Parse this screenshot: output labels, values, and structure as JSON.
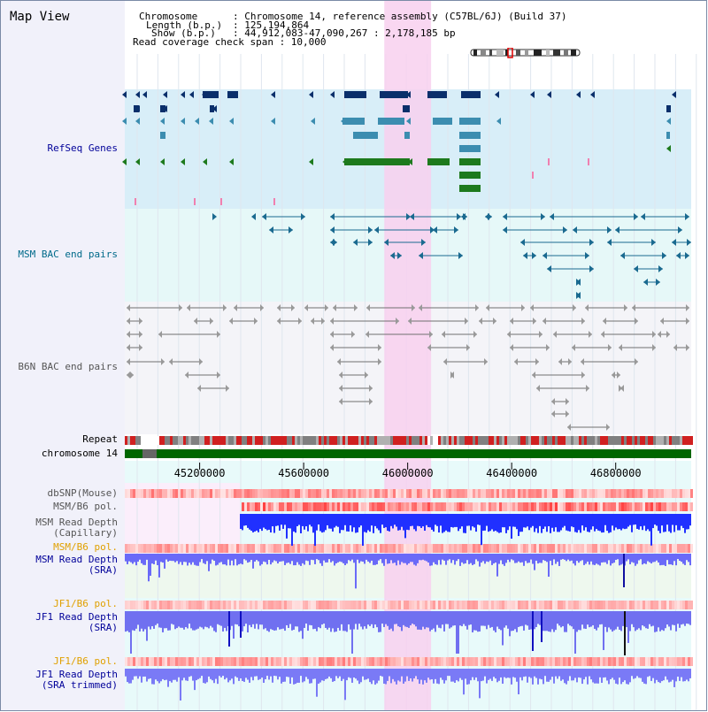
{
  "title": "Map View",
  "info": {
    "chromosome_label": "Chromosome",
    "chromosome_value": ": Chromosome 14, reference assembly (C57BL/6J) (Build 37)",
    "length_label": "Length (b.p.)",
    "length_value": ": 125,194,864",
    "show_label": "Show (b.p.)",
    "show_value": ": 44,912,083-47,090,267 : 2,178,185 bp",
    "coverage_text": "Read coverage check span : 10,000"
  },
  "tracks": {
    "refseq": "RefSeq Genes",
    "msm_bac": "MSM BAC end pairs",
    "b6n_bac": "B6N BAC end pairs",
    "repeat": "Repeat",
    "chromosome": "chromosome 14",
    "dbsnp": "dbSNP(Mouse)",
    "msm_b6_pol_1": "MSM/B6 pol.",
    "msm_depth_cap_1": "MSM Read Depth",
    "msm_depth_cap_2": "(Capillary)",
    "msm_b6_pol_2": "MSM/B6 pol.",
    "msm_depth_sra_1": "MSM Read Depth",
    "msm_depth_sra_2": "(SRA)",
    "jf1_b6_pol_1": "JF1/B6 pol.",
    "jf1_depth_sra_1": "JF1 Read Depth",
    "jf1_depth_sra_2": "(SRA)",
    "jf1_b6_pol_2": "JF1/B6 pol.",
    "jf1_depth_trim_1": "JF1 Read Depth",
    "jf1_depth_trim_2": "(SRA trimmed)"
  },
  "axis": {
    "ticks": [
      "45200000",
      "45600000",
      "46000000",
      "46400000",
      "46800000"
    ],
    "tick_values": [
      45200000,
      45600000,
      46000000,
      46400000,
      46800000
    ],
    "start": 44912083,
    "end": 47090267
  },
  "highlight": {
    "start": 45910000,
    "end": 46090000
  },
  "colors": {
    "refseq_bg": "#d8eef8",
    "msm_bg": "#e6f8f8",
    "b6n_bg": "#f4f4f8",
    "highlight": "#f8d0ee",
    "gene_dark": "#0a2f6b",
    "gene_mid": "#3c8db0",
    "gene_green": "#1d7a1d",
    "msm_pair": "#1a6a90",
    "b6n_pair": "#707070",
    "chrom": "#006600",
    "msm_label": "#006a8a",
    "refseq_label": "#000099",
    "b6n_label": "#555555",
    "pol_label": "#e0a000",
    "depth_label": "#000099",
    "gray_label": "#555555"
  }
}
